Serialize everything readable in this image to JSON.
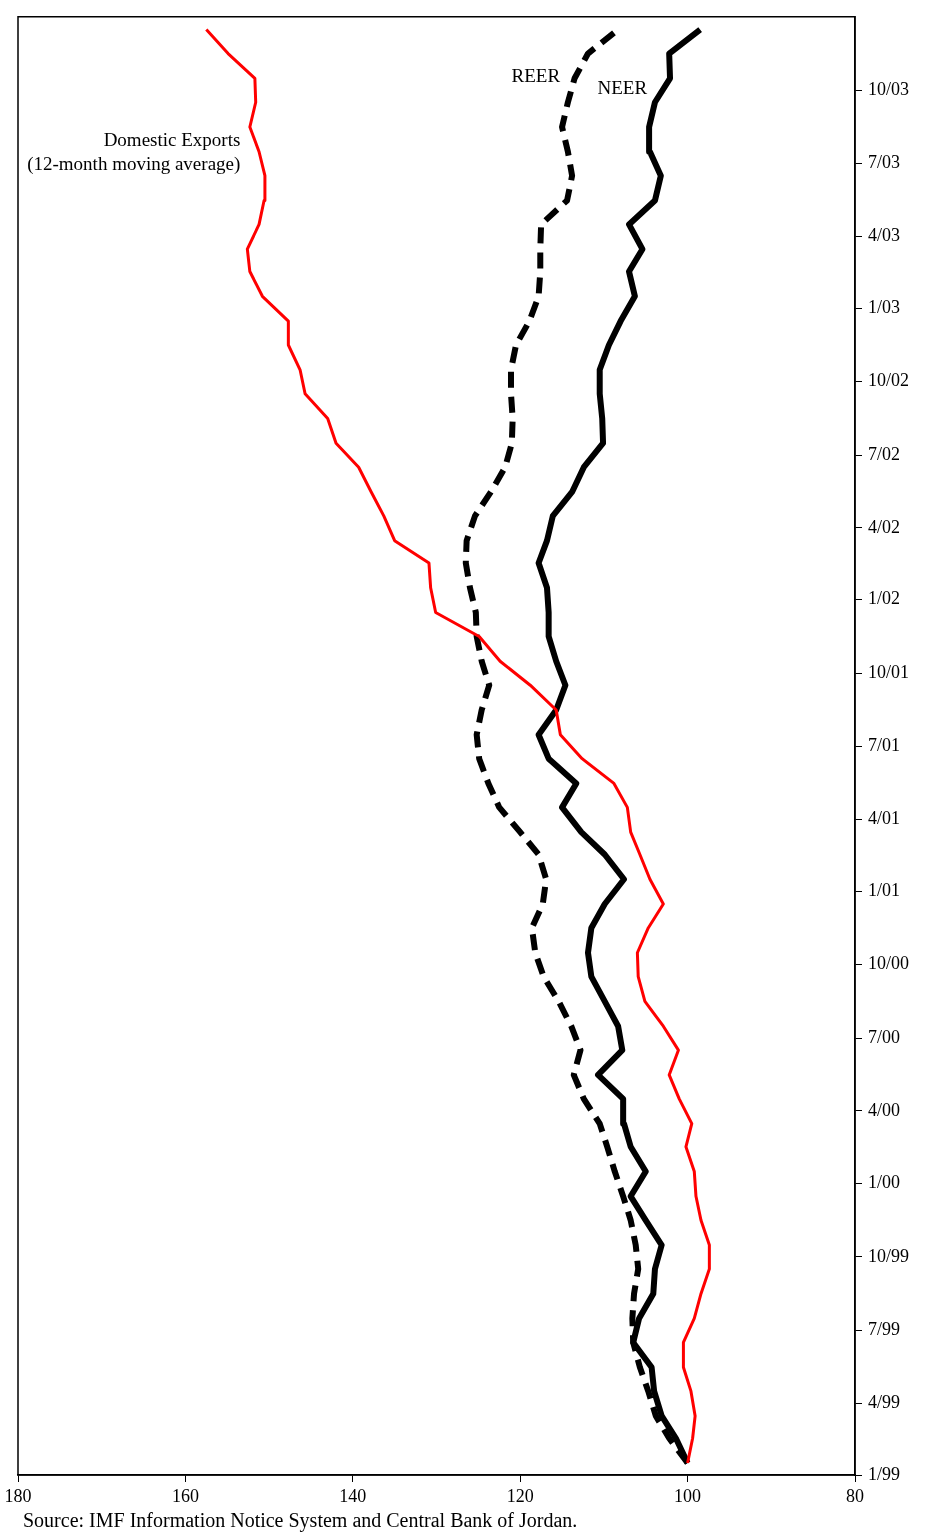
{
  "chart_data": {
    "type": "line",
    "x": [
      "1999-01-16",
      "1999-02-16",
      "1999-03-16",
      "1999-04-16",
      "1999-05-16",
      "1999-06-16",
      "1999-07-16",
      "1999-08-16",
      "1999-09-16",
      "1999-10-16",
      "1999-11-16",
      "1999-12-16",
      "2000-01-16",
      "2000-02-16",
      "2000-03-16",
      "2000-04-16",
      "2000-05-16",
      "2000-06-16",
      "2000-07-16",
      "2000-08-16",
      "2000-09-16",
      "2000-10-16",
      "2000-11-16",
      "2000-12-16",
      "2001-01-16",
      "2001-02-16",
      "2001-03-16",
      "2001-04-16",
      "2001-05-16",
      "2001-06-16",
      "2001-07-16",
      "2001-08-16",
      "2001-09-16",
      "2001-10-16",
      "2001-11-16",
      "2001-12-16",
      "2002-01-16",
      "2002-02-16",
      "2002-03-16",
      "2002-04-16",
      "2002-05-16",
      "2002-06-16",
      "2002-07-16",
      "2002-08-16",
      "2002-09-16",
      "2002-10-16",
      "2002-11-16",
      "2002-12-16",
      "2003-01-16",
      "2003-02-16",
      "2003-03-16",
      "2003-04-16",
      "2003-05-16",
      "2003-06-16",
      "2003-07-16",
      "2003-08-16",
      "2003-09-16",
      "2003-10-16",
      "2003-11-16",
      "2003-12-16"
    ],
    "ylim": [
      "1999-01",
      "2004-01"
    ],
    "yticks": [
      {
        "value": "1999-01",
        "label": "1/99"
      },
      {
        "value": "1999-04",
        "label": "4/99"
      },
      {
        "value": "1999-07",
        "label": "7/99"
      },
      {
        "value": "1999-10",
        "label": "10/99"
      },
      {
        "value": "2000-01",
        "label": "1/00"
      },
      {
        "value": "2000-04",
        "label": "4/00"
      },
      {
        "value": "2000-07",
        "label": "7/00"
      },
      {
        "value": "2000-10",
        "label": "10/00"
      },
      {
        "value": "2001-01",
        "label": "1/01"
      },
      {
        "value": "2001-04",
        "label": "4/01"
      },
      {
        "value": "2001-07",
        "label": "7/01"
      },
      {
        "value": "2001-10",
        "label": "10/01"
      },
      {
        "value": "2002-01",
        "label": "1/02"
      },
      {
        "value": "2002-04",
        "label": "4/02"
      },
      {
        "value": "2002-07",
        "label": "7/02"
      },
      {
        "value": "2002-10",
        "label": "10/02"
      },
      {
        "value": "2003-01",
        "label": "1/03"
      },
      {
        "value": "2003-04",
        "label": "4/03"
      },
      {
        "value": "2003-07",
        "label": "7/03"
      },
      {
        "value": "2003-10",
        "label": "10/03"
      }
    ],
    "xlim": [
      180,
      80
    ],
    "xticks": [
      180,
      160,
      140,
      120,
      100,
      80
    ],
    "grid": false,
    "legend": false,
    "marker": "none",
    "orientation": "horizontal",
    "series": [
      {
        "name": "Domestic Exports\n(12-month moving average)",
        "color": "#ff0000",
        "line_style": "solid",
        "values": [
          100,
          99.4,
          99.1,
          99.6,
          100.5,
          100.5,
          99.2,
          98.4,
          97.4,
          97.4,
          98.4,
          99.0,
          99.2,
          100.2,
          99.5,
          101.0,
          102.2,
          101.1,
          102.9,
          105.1,
          105.9,
          106.0,
          104.7,
          102.9,
          104.5,
          105.7,
          106.8,
          107.2,
          108.8,
          112.6,
          115.2,
          115.7,
          118.8,
          122.4,
          124.9,
          130.1,
          130.7,
          130.9,
          135.0,
          136.3,
          137.8,
          139.3,
          142.0,
          143.0,
          145.7,
          146.3,
          147.7,
          147.7,
          150.8,
          152.3,
          152.6,
          151.2,
          150.6,
          150.5,
          151.2,
          152.3,
          151.6,
          151.7,
          154.9,
          157.5
        ]
      },
      {
        "name": "REER",
        "color": "#000000",
        "line_style": "dashed",
        "values": [
          100,
          102.2,
          103.8,
          104.7,
          105.7,
          106.5,
          106.6,
          106.4,
          105.9,
          106.2,
          106.8,
          107.7,
          108.7,
          109.6,
          110.5,
          112.4,
          113.6,
          112.8,
          113.9,
          115.4,
          117.2,
          118.2,
          118.6,
          117.3,
          116.9,
          117.8,
          120.0,
          122.5,
          123.8,
          124.9,
          125.2,
          124.6,
          123.7,
          124.6,
          125.2,
          125.3,
          126.0,
          126.5,
          126.4,
          125.4,
          123.5,
          121.8,
          121.0,
          120.9,
          121.1,
          121.1,
          120.5,
          118.9,
          117.8,
          117.6,
          117.6,
          117.5,
          114.4,
          113.8,
          114.3,
          115.0,
          114.3,
          113.5,
          111.9,
          108.3
        ]
      },
      {
        "name": "NEER",
        "color": "#000000",
        "line_style": "solid",
        "values": [
          100,
          101.4,
          103.1,
          104.0,
          104.3,
          106.5,
          105.8,
          104.1,
          103.9,
          103.1,
          105.0,
          106.8,
          105.0,
          106.8,
          107.6,
          107.7,
          110.7,
          107.8,
          108.3,
          109.9,
          111.5,
          111.9,
          111.5,
          109.9,
          107.6,
          109.9,
          112.7,
          115.0,
          113.3,
          116.6,
          117.8,
          115.7,
          114.6,
          115.7,
          116.6,
          116.6,
          116.8,
          117.8,
          116.8,
          116.1,
          113.8,
          112.4,
          110.1,
          110.2,
          110.5,
          110.5,
          109.4,
          108.0,
          106.3,
          107.0,
          105.4,
          107.0,
          103.9,
          103.2,
          104.5,
          104.6,
          103.9,
          102.1,
          102.2,
          98.5
        ]
      }
    ],
    "annotations": [
      "Source: IMF Information Notice System and Central Bank of Jordan."
    ]
  }
}
